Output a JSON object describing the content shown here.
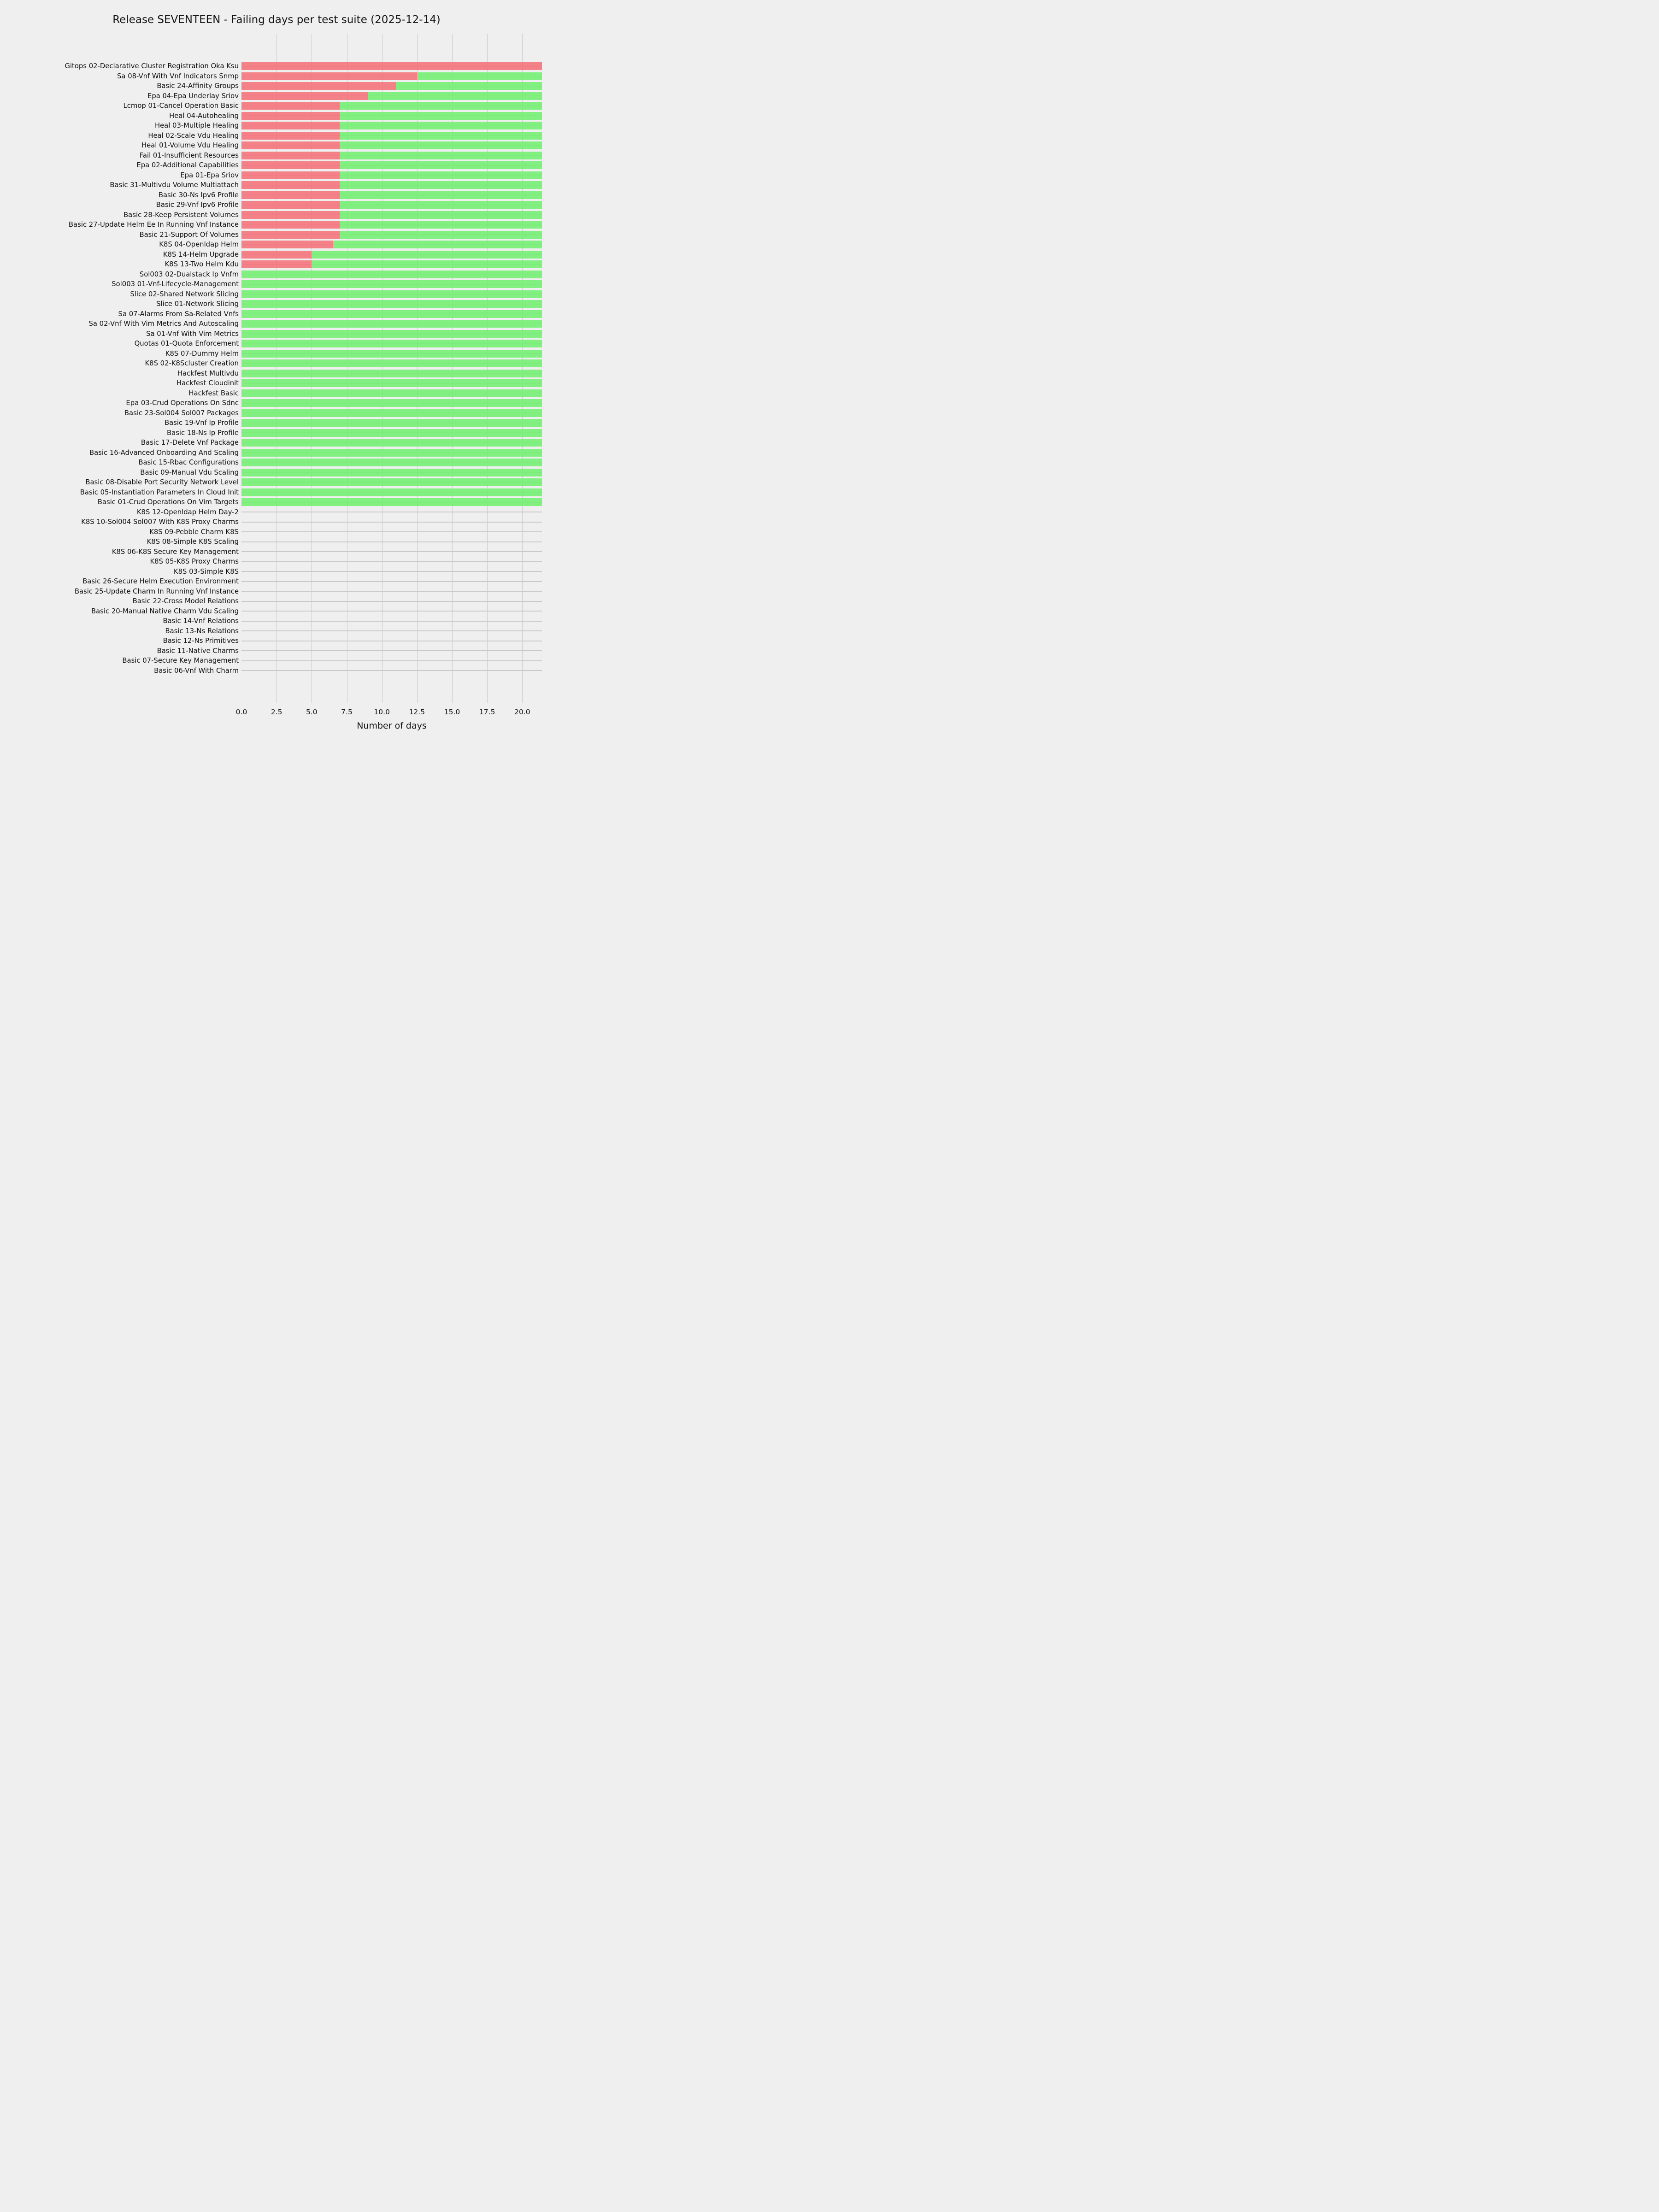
{
  "page": {
    "background": "#efefef",
    "grid_color": "#cccccc",
    "row_line_color": "#c9c9c9",
    "text_color": "#111111"
  },
  "chart_data": {
    "type": "bar",
    "orientation": "horizontal",
    "stacked": true,
    "title": "Release SEVENTEEN - Failing days per test suite (2025-12-14)",
    "xlabel": "Number of days",
    "ylabel": "",
    "xlim": [
      0,
      21.4
    ],
    "x_ticks": [
      0.0,
      2.5,
      5.0,
      7.5,
      10.0,
      12.5,
      15.0,
      17.5,
      20.0
    ],
    "x_tick_labels": [
      "0.0",
      "2.5",
      "5.0",
      "7.5",
      "10.0",
      "12.5",
      "15.0",
      "17.5",
      "20.0"
    ],
    "grid": true,
    "legend_position": "none",
    "colors": {
      "failing": "#f4747b",
      "passing": "#74f074"
    },
    "categories": [
      "Gitops 02-Declarative Cluster Registration Oka Ksu",
      "Sa 08-Vnf With Vnf Indicators Snmp",
      "Basic 24-Affinity Groups",
      "Epa 04-Epa Underlay Sriov",
      "Lcmop 01-Cancel Operation Basic",
      "Heal 04-Autohealing",
      "Heal 03-Multiple Healing",
      "Heal 02-Scale Vdu Healing",
      "Heal 01-Volume Vdu Healing",
      "Fail 01-Insufficient Resources",
      "Epa 02-Additional Capabilities",
      "Epa 01-Epa Sriov",
      "Basic 31-Multivdu Volume Multiattach",
      "Basic 30-Ns Ipv6 Profile",
      "Basic 29-Vnf Ipv6 Profile",
      "Basic 28-Keep Persistent Volumes",
      "Basic 27-Update Helm Ee In Running Vnf Instance",
      "Basic 21-Support Of Volumes",
      "K8S 04-Openldap Helm",
      "K8S 14-Helm Upgrade",
      "K8S 13-Two Helm Kdu",
      "Sol003 02-Dualstack Ip Vnfm",
      "Sol003 01-Vnf-Lifecycle-Management",
      "Slice 02-Shared Network Slicing",
      "Slice 01-Network Slicing",
      "Sa 07-Alarms From Sa-Related Vnfs",
      "Sa 02-Vnf With Vim Metrics And Autoscaling",
      "Sa 01-Vnf With Vim Metrics",
      "Quotas 01-Quota Enforcement",
      "K8S 07-Dummy Helm",
      "K8S 02-K8Scluster Creation",
      "Hackfest Multivdu",
      "Hackfest Cloudinit",
      "Hackfest Basic",
      "Epa 03-Crud Operations On Sdnc",
      "Basic 23-Sol004 Sol007 Packages",
      "Basic 19-Vnf Ip Profile",
      "Basic 18-Ns Ip Profile",
      "Basic 17-Delete Vnf Package",
      "Basic 16-Advanced Onboarding And Scaling",
      "Basic 15-Rbac Configurations",
      "Basic 09-Manual Vdu Scaling",
      "Basic 08-Disable Port Security Network Level",
      "Basic 05-Instantiation Parameters In Cloud Init",
      "Basic 01-Crud Operations On Vim Targets",
      "K8S 12-Openldap Helm Day-2",
      "K8S 10-Sol004 Sol007 With K8S Proxy Charms",
      "K8S 09-Pebble Charm K8S",
      "K8S 08-Simple K8S Scaling",
      "K8S 06-K8S Secure Key Management",
      "K8S 05-K8S Proxy Charms",
      "K8S 03-Simple K8S",
      "Basic 26-Secure Helm Execution Environment",
      "Basic 25-Update Charm In Running Vnf Instance",
      "Basic 22-Cross Model Relations",
      "Basic 20-Manual Native Charm Vdu Scaling",
      "Basic 14-Vnf Relations",
      "Basic 13-Ns Relations",
      "Basic 12-Ns Primitives",
      "Basic 11-Native Charms",
      "Basic 07-Secure Key Management",
      "Basic 06-Vnf With Charm"
    ],
    "series": [
      {
        "name": "failing_days",
        "color": "#f4747b",
        "values": [
          21.4,
          12.5,
          11,
          9,
          7,
          7,
          7,
          7,
          7,
          7,
          7,
          7,
          7,
          7,
          7,
          7,
          7,
          7,
          6.5,
          5,
          5,
          0,
          0,
          0,
          0,
          0,
          0,
          0,
          0,
          0,
          0,
          0,
          0,
          0,
          0,
          0,
          0,
          0,
          0,
          0,
          0,
          0,
          0,
          0,
          0,
          0,
          0,
          0,
          0,
          0,
          0,
          0,
          0,
          0,
          0,
          0,
          0,
          0,
          0,
          0,
          0,
          0
        ]
      },
      {
        "name": "passing_days",
        "color": "#74f074",
        "values": [
          0,
          8.9,
          10.4,
          12.4,
          14.4,
          14.4,
          14.4,
          14.4,
          14.4,
          14.4,
          14.4,
          14.4,
          14.4,
          14.4,
          14.4,
          14.4,
          14.4,
          14.4,
          14.9,
          16.4,
          16.4,
          21.4,
          21.4,
          21.4,
          21.4,
          21.4,
          21.4,
          21.4,
          21.4,
          21.4,
          21.4,
          21.4,
          21.4,
          21.4,
          21.4,
          21.4,
          21.4,
          21.4,
          21.4,
          21.4,
          21.4,
          21.4,
          21.4,
          21.4,
          21.4,
          0,
          0,
          0,
          0,
          0,
          0,
          0,
          0,
          0,
          0,
          0,
          0,
          0,
          0,
          0,
          0,
          0
        ]
      }
    ]
  }
}
